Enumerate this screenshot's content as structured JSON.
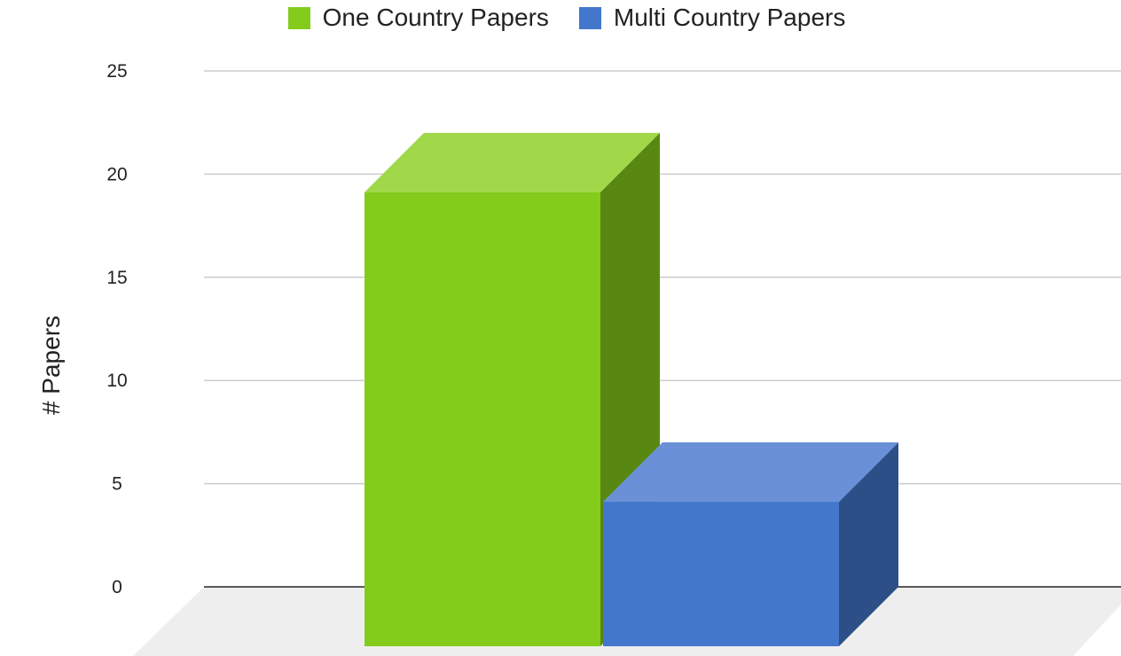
{
  "chart_data": {
    "type": "bar",
    "style": "3d",
    "categories": [
      ""
    ],
    "series": [
      {
        "name": "One Country Papers",
        "values": [
          22
        ],
        "color": "#84CC1C",
        "side_color": "#588811",
        "top_color": "#A0D84A"
      },
      {
        "name": "Multi Country Papers",
        "values": [
          7
        ],
        "color": "#4377CC",
        "side_color": "#2D4F88",
        "top_color": "#6A91D7"
      }
    ],
    "title": "",
    "xlabel": "",
    "ylabel": "# Papers",
    "ylim": [
      0,
      25
    ],
    "yticks": [
      "25",
      "20",
      "15",
      "10",
      "5",
      "0"
    ],
    "grid": true,
    "legend_position": "top-center",
    "grid_color": "#cccccc",
    "floor_color": "#eeeeee"
  }
}
